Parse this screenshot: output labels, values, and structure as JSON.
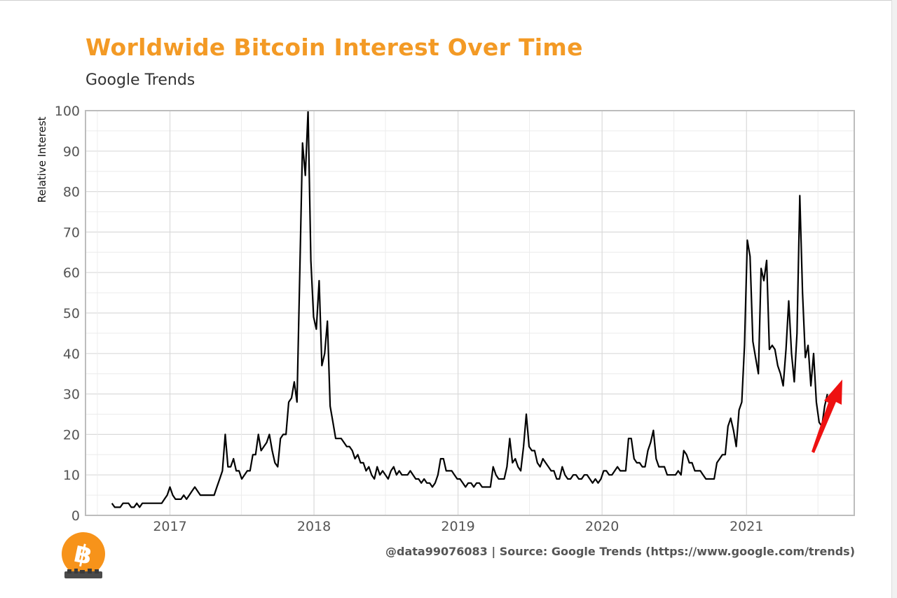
{
  "header": {
    "title": "Worldwide Bitcoin Interest Over Time",
    "subtitle": "Google Trends"
  },
  "footer": {
    "credit": "@data99076083 | Source: Google Trends (https://www.google.com/trends)"
  },
  "colors": {
    "title": "#f39a25",
    "line": "#000000",
    "arrow": "#ee1111",
    "logo": "#f7931a"
  },
  "logo": {
    "icon": "bitcoin-logo-icon"
  },
  "annotation": {
    "icon": "red-up-arrow-icon"
  },
  "chart_data": {
    "type": "line",
    "title": "Worldwide Bitcoin Interest Over Time",
    "subtitle": "Google Trends",
    "ylabel": "Relative Interest",
    "xlabel": "",
    "ylim": [
      0,
      100
    ],
    "xlim": [
      "2016-06-01",
      "2021-10-01"
    ],
    "yticks": [
      0,
      10,
      20,
      30,
      40,
      50,
      60,
      70,
      80,
      90,
      100
    ],
    "xticks": [
      "2017",
      "2018",
      "2019",
      "2020",
      "2021"
    ],
    "grid": true,
    "series": [
      {
        "x": [
          "2016-08-07",
          "2016-08-14",
          "2016-08-21",
          "2016-08-28",
          "2016-09-04",
          "2016-09-11",
          "2016-09-18",
          "2016-09-25",
          "2016-10-02",
          "2016-10-09",
          "2016-10-16",
          "2016-10-23",
          "2016-10-30",
          "2016-11-06",
          "2016-11-13",
          "2016-11-20",
          "2016-11-27",
          "2016-12-04",
          "2016-12-11",
          "2016-12-18",
          "2016-12-25",
          "2017-01-01",
          "2017-01-08",
          "2017-01-15",
          "2017-01-22",
          "2017-01-29",
          "2017-02-05",
          "2017-02-12",
          "2017-02-19",
          "2017-02-26",
          "2017-03-05",
          "2017-03-12",
          "2017-03-19",
          "2017-03-26",
          "2017-04-02",
          "2017-04-09",
          "2017-04-16",
          "2017-04-23",
          "2017-04-30",
          "2017-05-07",
          "2017-05-14",
          "2017-05-21",
          "2017-05-28",
          "2017-06-04",
          "2017-06-11",
          "2017-06-18",
          "2017-06-25",
          "2017-07-02",
          "2017-07-09",
          "2017-07-16",
          "2017-07-23",
          "2017-07-30",
          "2017-08-06",
          "2017-08-13",
          "2017-08-20",
          "2017-08-27",
          "2017-09-03",
          "2017-09-10",
          "2017-09-17",
          "2017-09-24",
          "2017-10-01",
          "2017-10-08",
          "2017-10-15",
          "2017-10-22",
          "2017-10-29",
          "2017-11-05",
          "2017-11-12",
          "2017-11-19",
          "2017-11-26",
          "2017-12-03",
          "2017-12-10",
          "2017-12-17",
          "2017-12-24",
          "2017-12-31",
          "2018-01-07",
          "2018-01-14",
          "2018-01-21",
          "2018-01-28",
          "2018-02-04",
          "2018-02-11",
          "2018-02-18",
          "2018-02-25",
          "2018-03-04",
          "2018-03-11",
          "2018-03-18",
          "2018-03-25",
          "2018-04-01",
          "2018-04-08",
          "2018-04-15",
          "2018-04-22",
          "2018-04-29",
          "2018-05-06",
          "2018-05-13",
          "2018-05-20",
          "2018-05-27",
          "2018-06-03",
          "2018-06-10",
          "2018-06-17",
          "2018-06-24",
          "2018-07-01",
          "2018-07-08",
          "2018-07-15",
          "2018-07-22",
          "2018-07-29",
          "2018-08-05",
          "2018-08-12",
          "2018-08-19",
          "2018-08-26",
          "2018-09-02",
          "2018-09-09",
          "2018-09-16",
          "2018-09-23",
          "2018-09-30",
          "2018-10-07",
          "2018-10-14",
          "2018-10-21",
          "2018-10-28",
          "2018-11-04",
          "2018-11-11",
          "2018-11-18",
          "2018-11-25",
          "2018-12-02",
          "2018-12-09",
          "2018-12-16",
          "2018-12-23",
          "2018-12-30",
          "2019-01-06",
          "2019-01-13",
          "2019-01-20",
          "2019-01-27",
          "2019-02-03",
          "2019-02-10",
          "2019-02-17",
          "2019-02-24",
          "2019-03-03",
          "2019-03-10",
          "2019-03-17",
          "2019-03-24",
          "2019-03-31",
          "2019-04-07",
          "2019-04-14",
          "2019-04-21",
          "2019-04-28",
          "2019-05-05",
          "2019-05-12",
          "2019-05-19",
          "2019-05-26",
          "2019-06-02",
          "2019-06-09",
          "2019-06-16",
          "2019-06-23",
          "2019-06-30",
          "2019-07-07",
          "2019-07-14",
          "2019-07-21",
          "2019-07-28",
          "2019-08-04",
          "2019-08-11",
          "2019-08-18",
          "2019-08-25",
          "2019-09-01",
          "2019-09-08",
          "2019-09-15",
          "2019-09-22",
          "2019-09-29",
          "2019-10-06",
          "2019-10-13",
          "2019-10-20",
          "2019-10-27",
          "2019-11-03",
          "2019-11-10",
          "2019-11-17",
          "2019-11-24",
          "2019-12-01",
          "2019-12-08",
          "2019-12-15",
          "2019-12-22",
          "2019-12-29",
          "2020-01-05",
          "2020-01-12",
          "2020-01-19",
          "2020-01-26",
          "2020-02-02",
          "2020-02-09",
          "2020-02-16",
          "2020-02-23",
          "2020-03-01",
          "2020-03-08",
          "2020-03-15",
          "2020-03-22",
          "2020-03-29",
          "2020-04-05",
          "2020-04-12",
          "2020-04-19",
          "2020-04-26",
          "2020-05-03",
          "2020-05-10",
          "2020-05-17",
          "2020-05-24",
          "2020-05-31",
          "2020-06-07",
          "2020-06-14",
          "2020-06-21",
          "2020-06-28",
          "2020-07-05",
          "2020-07-12",
          "2020-07-19",
          "2020-07-26",
          "2020-08-02",
          "2020-08-09",
          "2020-08-16",
          "2020-08-23",
          "2020-08-30",
          "2020-09-06",
          "2020-09-13",
          "2020-09-20",
          "2020-09-27",
          "2020-10-04",
          "2020-10-11",
          "2020-10-18",
          "2020-10-25",
          "2020-11-01",
          "2020-11-08",
          "2020-11-15",
          "2020-11-22",
          "2020-11-29",
          "2020-12-06",
          "2020-12-13",
          "2020-12-20",
          "2020-12-27",
          "2021-01-03",
          "2021-01-10",
          "2021-01-17",
          "2021-01-24",
          "2021-01-31",
          "2021-02-07",
          "2021-02-14",
          "2021-02-21",
          "2021-02-28",
          "2021-03-07",
          "2021-03-14",
          "2021-03-21",
          "2021-03-28",
          "2021-04-04",
          "2021-04-11",
          "2021-04-18",
          "2021-04-25",
          "2021-05-02",
          "2021-05-09",
          "2021-05-16",
          "2021-05-23",
          "2021-05-30",
          "2021-06-06",
          "2021-06-13",
          "2021-06-20",
          "2021-06-27",
          "2021-07-04",
          "2021-07-11",
          "2021-07-18",
          "2021-07-25"
        ],
        "values": [
          3,
          2,
          2,
          2,
          3,
          3,
          3,
          2,
          2,
          3,
          2,
          3,
          3,
          3,
          3,
          3,
          3,
          3,
          3,
          4,
          5,
          7,
          5,
          4,
          4,
          4,
          5,
          4,
          5,
          6,
          7,
          6,
          5,
          5,
          5,
          5,
          5,
          5,
          7,
          9,
          11,
          20,
          12,
          12,
          14,
          11,
          11,
          9,
          10,
          11,
          11,
          15,
          15,
          20,
          16,
          17,
          18,
          20,
          16,
          13,
          12,
          19,
          20,
          20,
          28,
          29,
          33,
          28,
          60,
          92,
          84,
          100,
          63,
          49,
          46,
          58,
          37,
          40,
          48,
          27,
          23,
          19,
          19,
          19,
          18,
          17,
          17,
          16,
          14,
          15,
          13,
          13,
          11,
          12,
          10,
          9,
          12,
          10,
          11,
          10,
          9,
          11,
          12,
          10,
          11,
          10,
          10,
          10,
          11,
          10,
          9,
          9,
          8,
          9,
          8,
          8,
          7,
          8,
          10,
          14,
          14,
          11,
          11,
          11,
          10,
          9,
          9,
          8,
          7,
          8,
          8,
          7,
          8,
          8,
          7,
          7,
          7,
          7,
          12,
          10,
          9,
          9,
          9,
          12,
          19,
          13,
          14,
          12,
          11,
          17,
          25,
          17,
          16,
          16,
          13,
          12,
          14,
          13,
          12,
          11,
          11,
          9,
          9,
          12,
          10,
          9,
          9,
          10,
          10,
          9,
          9,
          10,
          10,
          9,
          8,
          9,
          8,
          9,
          11,
          11,
          10,
          10,
          11,
          12,
          11,
          11,
          11,
          19,
          19,
          14,
          13,
          13,
          12,
          12,
          16,
          18,
          21,
          14,
          12,
          12,
          12,
          10,
          10,
          10,
          10,
          11,
          10,
          16,
          15,
          13,
          13,
          11,
          11,
          11,
          10,
          9,
          9,
          9,
          9,
          13,
          14,
          15,
          15,
          22,
          24,
          21,
          17,
          26,
          28,
          42,
          68,
          64,
          43,
          39,
          35,
          61,
          58,
          63,
          41,
          42,
          41,
          37,
          35,
          32,
          41,
          53,
          40,
          33,
          45,
          79,
          55,
          39,
          42,
          32,
          40,
          28,
          23,
          22,
          27,
          30
        ]
      }
    ]
  }
}
